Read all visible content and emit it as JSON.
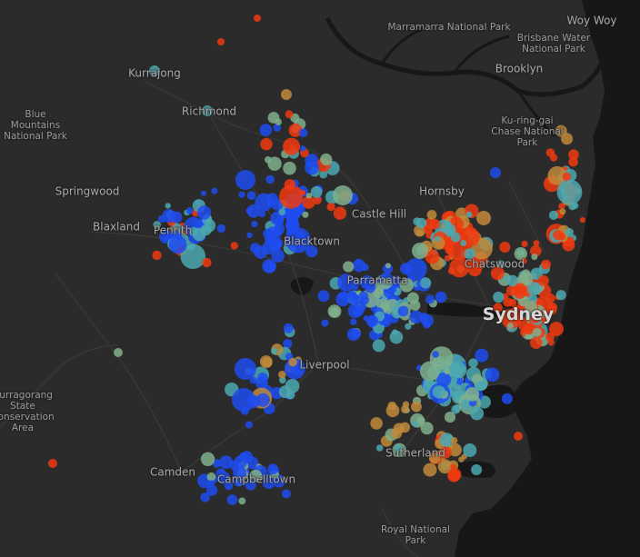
{
  "colors": {
    "land": "#2b2b2b",
    "water": "#171717",
    "road": "#3a3a3a",
    "blue": "#1f4cf0",
    "teal": "#4ca8b0",
    "seafoam": "#7fb08c",
    "amber": "#c08a3a",
    "red": "#f03a10"
  },
  "labels": [
    {
      "id": "marramarra",
      "text": "Marramarra National Park",
      "kind": "park"
    },
    {
      "id": "woywoy",
      "text": "Woy Woy",
      "kind": "town"
    },
    {
      "id": "brisbanewater",
      "text": "Brisbane Water National Park",
      "kind": "park"
    },
    {
      "id": "brooklyn",
      "text": "Brooklyn",
      "kind": "town"
    },
    {
      "id": "kurrajong",
      "text": "Kurrajong",
      "kind": "town"
    },
    {
      "id": "richmond",
      "text": "Richmond",
      "kind": "town"
    },
    {
      "id": "bluemountains",
      "text": "Blue Mountains National Park",
      "kind": "park"
    },
    {
      "id": "kuringgai",
      "text": "Ku-ring-gai Chase National Park",
      "kind": "park"
    },
    {
      "id": "springwood",
      "text": "Springwood",
      "kind": "town"
    },
    {
      "id": "hornsby",
      "text": "Hornsby",
      "kind": "town"
    },
    {
      "id": "castlehill",
      "text": "Castle Hill",
      "kind": "town"
    },
    {
      "id": "blaxland",
      "text": "Blaxland",
      "kind": "town"
    },
    {
      "id": "penrith",
      "text": "Penrith",
      "kind": "town"
    },
    {
      "id": "blacktown",
      "text": "Blacktown",
      "kind": "town"
    },
    {
      "id": "chatswood",
      "text": "Chatswood",
      "kind": "town"
    },
    {
      "id": "parramatta",
      "text": "Parramatta",
      "kind": "town"
    },
    {
      "id": "sydney",
      "text": "Sydney",
      "kind": "major"
    },
    {
      "id": "liverpool",
      "text": "Liverpool",
      "kind": "town"
    },
    {
      "id": "burragorang",
      "text": "Burragorang State Conservation Area",
      "kind": "park"
    },
    {
      "id": "sutherland",
      "text": "Sutherland",
      "kind": "town"
    },
    {
      "id": "camden",
      "text": "Camden",
      "kind": "town"
    },
    {
      "id": "campbelltown",
      "text": "Campbelltown",
      "kind": "town"
    },
    {
      "id": "royal",
      "text": "Royal National Park",
      "kind": "park"
    }
  ]
}
